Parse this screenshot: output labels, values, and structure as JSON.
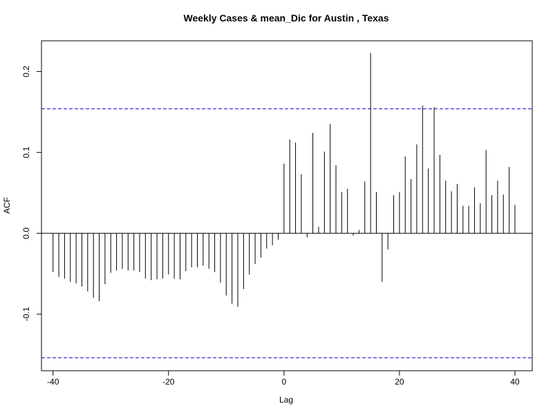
{
  "chart_data": {
    "type": "bar",
    "title": "Weekly Cases & mean_Dic for Austin , Texas",
    "xlabel": "Lag",
    "ylabel": "ACF",
    "xlim": [
      -42,
      43
    ],
    "ylim": [
      -0.17,
      0.238
    ],
    "x_ticks": [
      -40,
      -20,
      0,
      20,
      40
    ],
    "x_tick_labels": [
      "-40",
      "-20",
      "0",
      "20",
      "40"
    ],
    "y_ticks": [
      -0.1,
      0.0,
      0.1,
      0.2
    ],
    "y_tick_labels": [
      "-0.1",
      "0.0",
      "0.1",
      "0.2"
    ],
    "confidence_bounds": [
      0.154,
      -0.154
    ],
    "confidence_color": "#0000CC",
    "bar_color": "#000000",
    "zero_line": 0,
    "grid": false,
    "lags": [
      -40,
      -39,
      -38,
      -37,
      -36,
      -35,
      -34,
      -33,
      -32,
      -31,
      -30,
      -29,
      -28,
      -27,
      -26,
      -25,
      -24,
      -23,
      -22,
      -21,
      -20,
      -19,
      -18,
      -17,
      -16,
      -15,
      -14,
      -13,
      -12,
      -11,
      -10,
      -9,
      -8,
      -7,
      -6,
      -5,
      -4,
      -3,
      -2,
      -1,
      0,
      1,
      2,
      3,
      4,
      5,
      6,
      7,
      8,
      9,
      10,
      11,
      12,
      13,
      14,
      15,
      16,
      17,
      18,
      19,
      20,
      21,
      22,
      23,
      24,
      25,
      26,
      27,
      28,
      29,
      30,
      31,
      32,
      33,
      34,
      35,
      36,
      37,
      38,
      39,
      40
    ],
    "values": [
      -0.048,
      -0.054,
      -0.056,
      -0.06,
      -0.062,
      -0.066,
      -0.072,
      -0.08,
      -0.084,
      -0.063,
      -0.049,
      -0.046,
      -0.044,
      -0.046,
      -0.046,
      -0.048,
      -0.056,
      -0.058,
      -0.057,
      -0.056,
      -0.051,
      -0.056,
      -0.057,
      -0.047,
      -0.042,
      -0.042,
      -0.04,
      -0.044,
      -0.048,
      -0.061,
      -0.077,
      -0.087,
      -0.091,
      -0.069,
      -0.051,
      -0.038,
      -0.03,
      -0.019,
      -0.015,
      -0.008,
      0.086,
      0.116,
      0.112,
      0.073,
      -0.005,
      0.124,
      0.008,
      0.101,
      0.135,
      0.084,
      0.051,
      0.055,
      -0.003,
      0.004,
      0.064,
      0.223,
      0.051,
      -0.06,
      -0.02,
      0.047,
      0.051,
      0.095,
      0.067,
      0.11,
      0.158,
      0.08,
      0.156,
      0.097,
      0.065,
      0.052,
      0.061,
      0.034,
      0.034,
      0.057,
      0.037,
      0.103,
      0.047,
      0.065,
      0.048,
      0.082,
      0.035
    ]
  }
}
